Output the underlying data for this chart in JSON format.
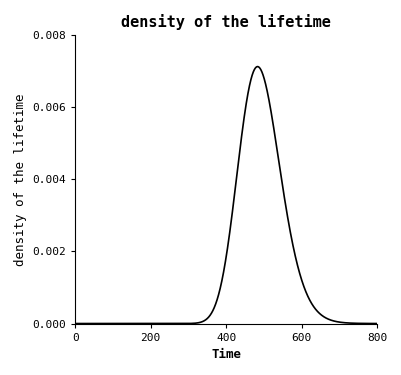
{
  "title": "density of the lifetime",
  "xlabel": "Time",
  "ylabel": "density of the lifetime",
  "xlim": [
    0,
    800
  ],
  "ylim": [
    0,
    0.008
  ],
  "xticks": [
    0,
    200,
    400,
    600,
    800
  ],
  "yticks": [
    0.0,
    0.002,
    0.004,
    0.006,
    0.008
  ],
  "line_color": "#000000",
  "line_width": 1.2,
  "bg_color": "#ffffff",
  "mu": 6.194,
  "sigma": 0.115,
  "title_fontsize": 11,
  "label_fontsize": 9,
  "tick_fontsize": 8,
  "font_family": "DejaVu Sans Mono"
}
